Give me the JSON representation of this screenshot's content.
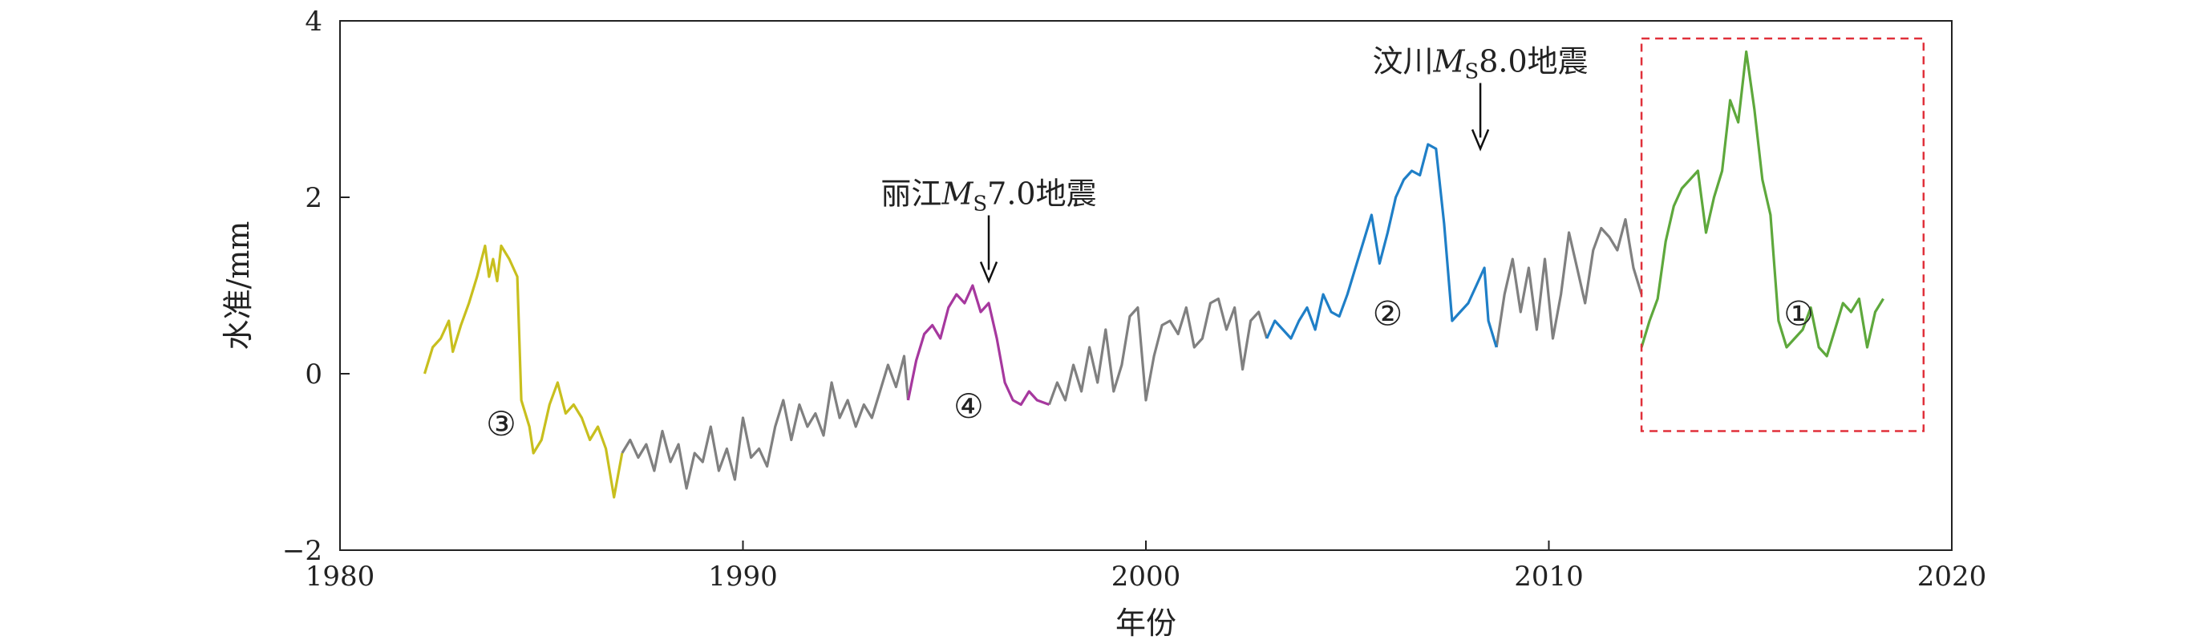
{
  "chart_data": {
    "type": "line",
    "title": "",
    "xlabel": "年份",
    "ylabel": "水准/mm",
    "xlim": [
      1980,
      2020
    ],
    "ylim": [
      -2,
      4
    ],
    "x_ticks": [
      "1980",
      "1990",
      "2000",
      "2010",
      "2020"
    ],
    "y_ticks": [
      "−2",
      "0",
      "2",
      "4"
    ],
    "grid": false,
    "colors": {
      "gray": "#808080",
      "yellow": "#c8bf1e",
      "purple": "#a6389e",
      "blue": "#1f7fc7",
      "green": "#5ea83c",
      "box": "#e0303a"
    },
    "series": [
      {
        "color": "gray",
        "points": [
          [
            1987.0,
            -0.9
          ],
          [
            1987.2,
            -0.75
          ],
          [
            1987.4,
            -0.95
          ],
          [
            1987.6,
            -0.8
          ],
          [
            1987.8,
            -1.1
          ],
          [
            1988.0,
            -0.65
          ],
          [
            1988.2,
            -1.0
          ],
          [
            1988.4,
            -0.8
          ],
          [
            1988.6,
            -1.3
          ],
          [
            1988.8,
            -0.9
          ],
          [
            1989.0,
            -1.0
          ],
          [
            1989.2,
            -0.6
          ],
          [
            1989.4,
            -1.1
          ],
          [
            1989.6,
            -0.85
          ],
          [
            1989.8,
            -1.2
          ],
          [
            1990.0,
            -0.5
          ],
          [
            1990.2,
            -0.95
          ],
          [
            1990.4,
            -0.85
          ],
          [
            1990.6,
            -1.05
          ],
          [
            1990.8,
            -0.6
          ],
          [
            1991.0,
            -0.3
          ],
          [
            1991.2,
            -0.75
          ],
          [
            1991.4,
            -0.35
          ],
          [
            1991.6,
            -0.6
          ],
          [
            1991.8,
            -0.45
          ],
          [
            1992.0,
            -0.7
          ],
          [
            1992.2,
            -0.1
          ],
          [
            1992.4,
            -0.5
          ],
          [
            1992.6,
            -0.3
          ],
          [
            1992.8,
            -0.6
          ],
          [
            1993.0,
            -0.35
          ],
          [
            1993.2,
            -0.5
          ],
          [
            1993.4,
            -0.2
          ],
          [
            1993.6,
            0.1
          ],
          [
            1993.8,
            -0.15
          ],
          [
            1994.0,
            0.2
          ],
          [
            1994.1,
            -0.3
          ]
        ]
      },
      {
        "color": "gray",
        "points": [
          [
            1997.6,
            -0.35
          ],
          [
            1997.8,
            -0.1
          ],
          [
            1998.0,
            -0.3
          ],
          [
            1998.2,
            0.1
          ],
          [
            1998.4,
            -0.2
          ],
          [
            1998.6,
            0.3
          ],
          [
            1998.8,
            -0.1
          ],
          [
            1999.0,
            0.5
          ],
          [
            1999.2,
            -0.2
          ],
          [
            1999.4,
            0.1
          ],
          [
            1999.6,
            0.65
          ],
          [
            1999.8,
            0.75
          ],
          [
            2000.0,
            -0.3
          ],
          [
            2000.2,
            0.2
          ],
          [
            2000.4,
            0.55
          ],
          [
            2000.6,
            0.6
          ],
          [
            2000.8,
            0.45
          ],
          [
            2001.0,
            0.75
          ],
          [
            2001.2,
            0.3
          ],
          [
            2001.4,
            0.4
          ],
          [
            2001.6,
            0.8
          ],
          [
            2001.8,
            0.85
          ],
          [
            2002.0,
            0.5
          ],
          [
            2002.2,
            0.75
          ],
          [
            2002.4,
            0.05
          ],
          [
            2002.6,
            0.6
          ],
          [
            2002.8,
            0.7
          ],
          [
            2003.0,
            0.4
          ]
        ]
      },
      {
        "color": "gray",
        "points": [
          [
            2008.7,
            0.3
          ],
          [
            2008.9,
            0.9
          ],
          [
            2009.1,
            1.3
          ],
          [
            2009.3,
            0.7
          ],
          [
            2009.5,
            1.2
          ],
          [
            2009.7,
            0.5
          ],
          [
            2009.9,
            1.3
          ],
          [
            2010.1,
            0.4
          ],
          [
            2010.3,
            0.9
          ],
          [
            2010.5,
            1.6
          ],
          [
            2010.7,
            1.2
          ],
          [
            2010.9,
            0.8
          ],
          [
            2011.1,
            1.4
          ],
          [
            2011.3,
            1.65
          ],
          [
            2011.5,
            1.55
          ],
          [
            2011.7,
            1.4
          ],
          [
            2011.9,
            1.75
          ],
          [
            2012.1,
            1.2
          ],
          [
            2012.3,
            0.9
          ]
        ]
      },
      {
        "color": "yellow",
        "points": [
          [
            1982.1,
            0.0
          ],
          [
            1982.3,
            0.3
          ],
          [
            1982.5,
            0.4
          ],
          [
            1982.7,
            0.6
          ],
          [
            1982.8,
            0.25
          ],
          [
            1983.0,
            0.55
          ],
          [
            1983.2,
            0.8
          ],
          [
            1983.4,
            1.1
          ],
          [
            1983.6,
            1.45
          ],
          [
            1983.7,
            1.1
          ],
          [
            1983.8,
            1.3
          ],
          [
            1983.9,
            1.05
          ],
          [
            1984.0,
            1.45
          ],
          [
            1984.2,
            1.3
          ],
          [
            1984.4,
            1.1
          ],
          [
            1984.5,
            -0.3
          ],
          [
            1984.7,
            -0.6
          ],
          [
            1984.8,
            -0.9
          ],
          [
            1985.0,
            -0.75
          ],
          [
            1985.2,
            -0.35
          ],
          [
            1985.4,
            -0.1
          ],
          [
            1985.6,
            -0.45
          ],
          [
            1985.8,
            -0.35
          ],
          [
            1986.0,
            -0.5
          ],
          [
            1986.2,
            -0.75
          ],
          [
            1986.4,
            -0.6
          ],
          [
            1986.6,
            -0.85
          ],
          [
            1986.8,
            -1.4
          ],
          [
            1987.0,
            -0.9
          ]
        ]
      },
      {
        "color": "purple",
        "points": [
          [
            1994.1,
            -0.3
          ],
          [
            1994.3,
            0.15
          ],
          [
            1994.5,
            0.45
          ],
          [
            1994.7,
            0.55
          ],
          [
            1994.9,
            0.4
          ],
          [
            1995.1,
            0.75
          ],
          [
            1995.3,
            0.9
          ],
          [
            1995.5,
            0.8
          ],
          [
            1995.7,
            1.0
          ],
          [
            1995.9,
            0.7
          ],
          [
            1996.1,
            0.8
          ],
          [
            1996.3,
            0.4
          ],
          [
            1996.5,
            -0.1
          ],
          [
            1996.7,
            -0.3
          ],
          [
            1996.9,
            -0.35
          ],
          [
            1997.1,
            -0.2
          ],
          [
            1997.3,
            -0.3
          ],
          [
            1997.6,
            -0.35
          ]
        ]
      },
      {
        "color": "blue",
        "points": [
          [
            2003.0,
            0.4
          ],
          [
            2003.2,
            0.6
          ],
          [
            2003.4,
            0.5
          ],
          [
            2003.6,
            0.4
          ],
          [
            2003.8,
            0.6
          ],
          [
            2004.0,
            0.75
          ],
          [
            2004.2,
            0.5
          ],
          [
            2004.4,
            0.9
          ],
          [
            2004.6,
            0.7
          ],
          [
            2004.8,
            0.65
          ],
          [
            2005.0,
            0.9
          ],
          [
            2005.2,
            1.2
          ],
          [
            2005.4,
            1.5
          ],
          [
            2005.6,
            1.8
          ],
          [
            2005.8,
            1.25
          ],
          [
            2006.0,
            1.6
          ],
          [
            2006.2,
            2.0
          ],
          [
            2006.4,
            2.2
          ],
          [
            2006.6,
            2.3
          ],
          [
            2006.8,
            2.25
          ],
          [
            2007.0,
            2.6
          ],
          [
            2007.2,
            2.55
          ],
          [
            2007.4,
            1.7
          ],
          [
            2007.6,
            0.6
          ],
          [
            2007.8,
            0.7
          ],
          [
            2008.0,
            0.8
          ],
          [
            2008.2,
            1.0
          ],
          [
            2008.4,
            1.2
          ],
          [
            2008.5,
            0.6
          ],
          [
            2008.7,
            0.3
          ]
        ]
      },
      {
        "color": "green",
        "points": [
          [
            2012.3,
            0.3
          ],
          [
            2012.5,
            0.6
          ],
          [
            2012.7,
            0.85
          ],
          [
            2012.9,
            1.5
          ],
          [
            2013.1,
            1.9
          ],
          [
            2013.3,
            2.1
          ],
          [
            2013.5,
            2.2
          ],
          [
            2013.7,
            2.3
          ],
          [
            2013.9,
            1.6
          ],
          [
            2014.1,
            2.0
          ],
          [
            2014.3,
            2.3
          ],
          [
            2014.5,
            3.1
          ],
          [
            2014.7,
            2.85
          ],
          [
            2014.9,
            3.65
          ],
          [
            2015.1,
            3.0
          ],
          [
            2015.3,
            2.2
          ],
          [
            2015.5,
            1.8
          ],
          [
            2015.7,
            0.6
          ],
          [
            2015.9,
            0.3
          ],
          [
            2016.1,
            0.4
          ],
          [
            2016.3,
            0.5
          ],
          [
            2016.5,
            0.75
          ],
          [
            2016.7,
            0.3
          ],
          [
            2016.9,
            0.2
          ],
          [
            2017.1,
            0.5
          ],
          [
            2017.3,
            0.8
          ],
          [
            2017.5,
            0.7
          ],
          [
            2017.7,
            0.85
          ],
          [
            2017.9,
            0.3
          ],
          [
            2018.1,
            0.7
          ],
          [
            2018.3,
            0.85
          ]
        ]
      }
    ],
    "annotations": [
      {
        "text_pre": "丽江",
        "text_M": "M",
        "text_sub": "S",
        "text_post": "7.0地震",
        "x": 1996.1,
        "y": 1.05
      },
      {
        "text_pre": "汶川",
        "text_M": "M",
        "text_sub": "S",
        "text_post": "8.0地震",
        "x": 2008.3,
        "y": 2.55
      }
    ],
    "region_labels": [
      {
        "text": "①",
        "x": 2016.2,
        "y": 0.55
      },
      {
        "text": "②",
        "x": 2006.0,
        "y": 0.55
      },
      {
        "text": "③",
        "x": 1984.0,
        "y": -0.7
      },
      {
        "text": "④",
        "x": 1995.6,
        "y": -0.5
      }
    ],
    "highlight_box": {
      "x0": 2012.3,
      "x1": 2019.3,
      "y0": -0.65,
      "y1": 3.8
    }
  }
}
